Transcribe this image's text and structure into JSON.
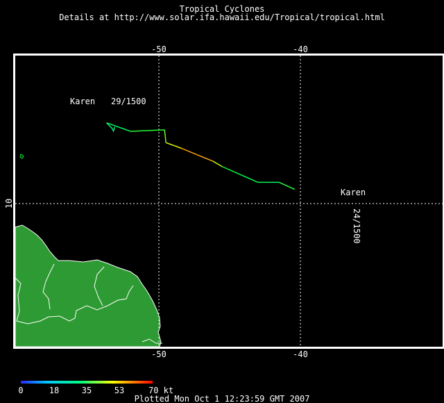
{
  "header": {
    "title": "Tropical Cyclones",
    "subtitle": "Details at http://www.solar.ifa.hawaii.edu/Tropical/tropical.html"
  },
  "axes": {
    "top_ticks": [
      "-50",
      "-40"
    ],
    "bottom_ticks": [
      "-50",
      "-40"
    ],
    "left_ticks": [
      "10"
    ]
  },
  "storm": {
    "name": "Karen",
    "start_label": "24/1500",
    "end_label": "29/1500",
    "track": [
      {
        "lon": -40.4,
        "lat": 11.0,
        "kt": 40
      },
      {
        "lon": -41.5,
        "lat": 11.5,
        "kt": 35
      },
      {
        "lon": -43.0,
        "lat": 11.5,
        "kt": 30
      },
      {
        "lon": -45.5,
        "lat": 12.6,
        "kt": 40
      },
      {
        "lon": -46.2,
        "lat": 13.0,
        "kt": 55
      },
      {
        "lon": -47.2,
        "lat": 13.4,
        "kt": 60
      },
      {
        "lon": -48.4,
        "lat": 13.9,
        "kt": 57
      },
      {
        "lon": -49.5,
        "lat": 14.3,
        "kt": 45
      },
      {
        "lon": -49.6,
        "lat": 15.2,
        "kt": 40
      },
      {
        "lon": -52.0,
        "lat": 15.1,
        "kt": 35
      },
      {
        "lon": -53.7,
        "lat": 15.7,
        "kt": 30
      }
    ]
  },
  "colorbar": {
    "labels": [
      "0",
      "18",
      "35",
      "53",
      "70 kt"
    ],
    "colors": [
      "#2b2bff",
      "#00c8ff",
      "#00ff80",
      "#ffff00",
      "#ff8000",
      "#ff0000"
    ]
  },
  "footer": {
    "plotted": "Plotted Mon Oct  1 12:23:59 GMT 2007"
  },
  "colors": {
    "land": "#2e9a33",
    "coast": "#ffffff",
    "grid": "#ffffff"
  }
}
